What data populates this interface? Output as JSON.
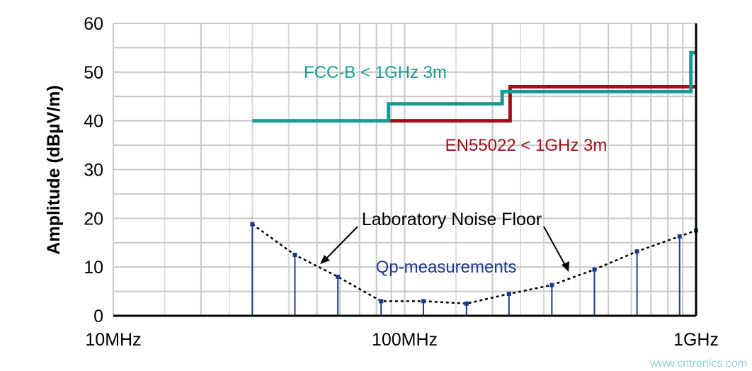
{
  "chart_data": {
    "type": "line",
    "title": "",
    "xlabel": "",
    "ylabel": "Amplitude (dBµV/m)",
    "x_scale": "log",
    "xlim_hz": [
      10000000,
      1000000000
    ],
    "ylim": [
      0,
      60
    ],
    "grid": true,
    "x_ticks": [
      {
        "value": 10000000,
        "label": "10MHz"
      },
      {
        "value": 100000000,
        "label": "100MHz"
      },
      {
        "value": 1000000000,
        "label": "1GHz"
      }
    ],
    "y_ticks": [
      0,
      10,
      20,
      30,
      40,
      50,
      60
    ],
    "series": [
      {
        "name": "FCC-B < 1GHz 3m",
        "color": "#1a9a96",
        "style": "step",
        "points": [
          [
            30000000,
            40
          ],
          [
            88000000,
            40
          ],
          [
            88000000,
            43.5
          ],
          [
            216000000,
            43.5
          ],
          [
            216000000,
            46
          ],
          [
            960000000,
            46
          ],
          [
            960000000,
            54
          ],
          [
            1000000000,
            54
          ]
        ]
      },
      {
        "name": "EN55022 < 1GHz 3m",
        "color": "#a01018",
        "style": "step",
        "points": [
          [
            88000000,
            40
          ],
          [
            230000000,
            40
          ],
          [
            230000000,
            47
          ],
          [
            1000000000,
            47
          ]
        ]
      },
      {
        "name": "Qp-measurements",
        "color": "#1a3a8c",
        "style": "stem",
        "points": [
          [
            30000000,
            18.8
          ],
          [
            42000000,
            12.5
          ],
          [
            59000000,
            8
          ],
          [
            83000000,
            3
          ],
          [
            116000000,
            3
          ],
          [
            163000000,
            2.5
          ],
          [
            228000000,
            4.5
          ],
          [
            320000000,
            6.3
          ],
          [
            448000000,
            9.5
          ],
          [
            627000000,
            13.2
          ],
          [
            878000000,
            16.3
          ],
          [
            1000000000,
            17.5
          ]
        ]
      }
    ],
    "annotations": [
      {
        "text": "Laboratory Noise Floor",
        "color": "#000000"
      },
      {
        "text": "Qp-measurements",
        "color": "#1a3a8c"
      },
      {
        "text": "FCC-B < 1GHz 3m",
        "color": "#1a9a96"
      },
      {
        "text": "EN55022 < 1GHz 3m",
        "color": "#a01018"
      }
    ]
  },
  "watermark": "www.cntronics.com"
}
